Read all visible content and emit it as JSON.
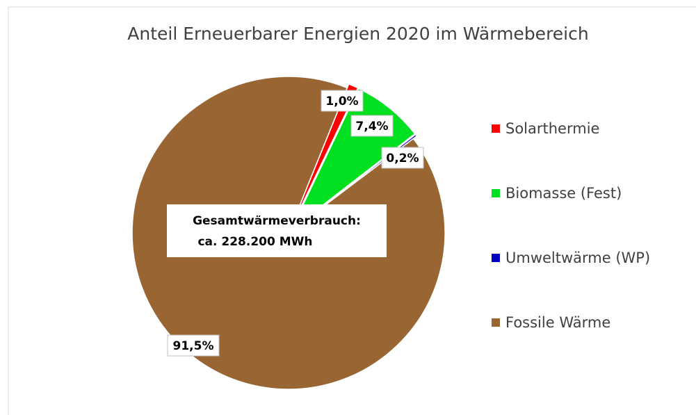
{
  "chart_data": {
    "type": "pie",
    "title": "Anteil Erneuerbarer  Energien 2020 im Wärmebereich",
    "categories": [
      "Solarthermie",
      "Biomasse (Fest)",
      "Umweltwärme (WP)",
      "Fossile Wärme"
    ],
    "values": [
      1.0,
      7.4,
      0.2,
      91.5
    ],
    "value_labels": [
      "1,0%",
      "7,4%",
      "0,2%",
      "91,5%"
    ],
    "colors": [
      "#ff0000",
      "#00e020",
      "#0000c0",
      "#996633"
    ],
    "annotation": [
      "Gesamtwärmeverbrauch:",
      "ca. 228.200 MWh"
    ],
    "legend": "right"
  }
}
